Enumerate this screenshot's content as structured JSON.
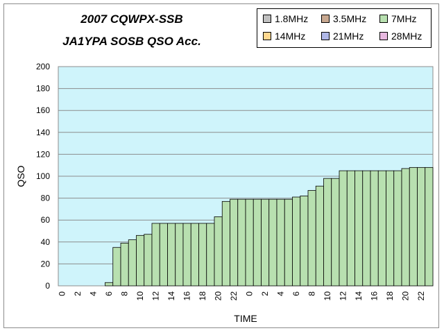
{
  "chart_data": {
    "type": "bar",
    "title": "2007 CQWPX-SSB",
    "subtitle": "JA1YPA SOSB   QSO Acc.",
    "xlabel": "TIME",
    "ylabel": "QSO",
    "ylim": [
      0,
      200
    ],
    "yticks": [
      "0",
      "20",
      "40",
      "60",
      "80",
      "100",
      "120",
      "140",
      "160",
      "180",
      "200"
    ],
    "xtick_labels": [
      "0",
      "2",
      "4",
      "6",
      "8",
      "10",
      "12",
      "14",
      "16",
      "18",
      "20",
      "22",
      "0",
      "2",
      "4",
      "6",
      "8",
      "10",
      "12",
      "14",
      "16",
      "18",
      "20",
      "22"
    ],
    "grid": true,
    "legend_position": "top-right",
    "stacked": true,
    "series": [
      {
        "name": "1.8MHz",
        "color": "#c0c0c0",
        "values": [
          0,
          0,
          0,
          0,
          0,
          0,
          0,
          0,
          0,
          0,
          0,
          0,
          0,
          0,
          0,
          0,
          0,
          0,
          0,
          0,
          0,
          0,
          0,
          0,
          0,
          0,
          0,
          0,
          0,
          0,
          0,
          0,
          0,
          0,
          0,
          0,
          0,
          0,
          0,
          0,
          0,
          0,
          0,
          0,
          0,
          0,
          0,
          0
        ]
      },
      {
        "name": "3.5MHz",
        "color": "#c8a890",
        "values": [
          0,
          0,
          0,
          0,
          0,
          0,
          0,
          0,
          0,
          0,
          0,
          0,
          0,
          0,
          0,
          0,
          0,
          0,
          0,
          0,
          0,
          0,
          0,
          0,
          0,
          0,
          0,
          0,
          0,
          0,
          0,
          0,
          0,
          0,
          0,
          0,
          0,
          0,
          0,
          0,
          0,
          0,
          0,
          0,
          0,
          0,
          0,
          0
        ]
      },
      {
        "name": "7MHz",
        "color": "#b8e0b0",
        "values": [
          0,
          0,
          0,
          0,
          0,
          0,
          3,
          35,
          39,
          42,
          46,
          47,
          57,
          57,
          57,
          57,
          57,
          57,
          57,
          57,
          63,
          77,
          79,
          79,
          79,
          79,
          79,
          79,
          79,
          79,
          81,
          82,
          87,
          91,
          98,
          98,
          105,
          105,
          105,
          105,
          105,
          105,
          105,
          105,
          107,
          108,
          108,
          108
        ]
      },
      {
        "name": "14MHz",
        "color": "#ffd890",
        "values": [
          0,
          0,
          0,
          0,
          0,
          0,
          0,
          0,
          0,
          0,
          0,
          0,
          0,
          0,
          0,
          0,
          0,
          0,
          0,
          0,
          0,
          0,
          0,
          0,
          0,
          0,
          0,
          0,
          0,
          0,
          0,
          0,
          0,
          0,
          0,
          0,
          0,
          0,
          0,
          0,
          0,
          0,
          0,
          0,
          0,
          0,
          0,
          0
        ]
      },
      {
        "name": "21MHz",
        "color": "#b0b8e8",
        "values": [
          0,
          0,
          0,
          0,
          0,
          0,
          0,
          0,
          0,
          0,
          0,
          0,
          0,
          0,
          0,
          0,
          0,
          0,
          0,
          0,
          0,
          0,
          0,
          0,
          0,
          0,
          0,
          0,
          0,
          0,
          0,
          0,
          0,
          0,
          0,
          0,
          0,
          0,
          0,
          0,
          0,
          0,
          0,
          0,
          0,
          0,
          0,
          0
        ]
      },
      {
        "name": "28MHz",
        "color": "#e8b8e0",
        "values": [
          0,
          0,
          0,
          0,
          0,
          0,
          0,
          0,
          0,
          0,
          0,
          0,
          0,
          0,
          0,
          0,
          0,
          0,
          0,
          0,
          0,
          0,
          0,
          0,
          0,
          0,
          0,
          0,
          0,
          0,
          0,
          0,
          0,
          0,
          0,
          0,
          0,
          0,
          0,
          0,
          0,
          0,
          0,
          0,
          0,
          0,
          0,
          0
        ]
      }
    ]
  },
  "colors": {
    "plot_background": "#cff4fb",
    "bar_outline": "#000000",
    "gridline": "#8c8c8c"
  },
  "legend": [
    "1.8MHz",
    "3.5MHz",
    "7MHz",
    "14MHz",
    "21MHz",
    "28MHz"
  ]
}
